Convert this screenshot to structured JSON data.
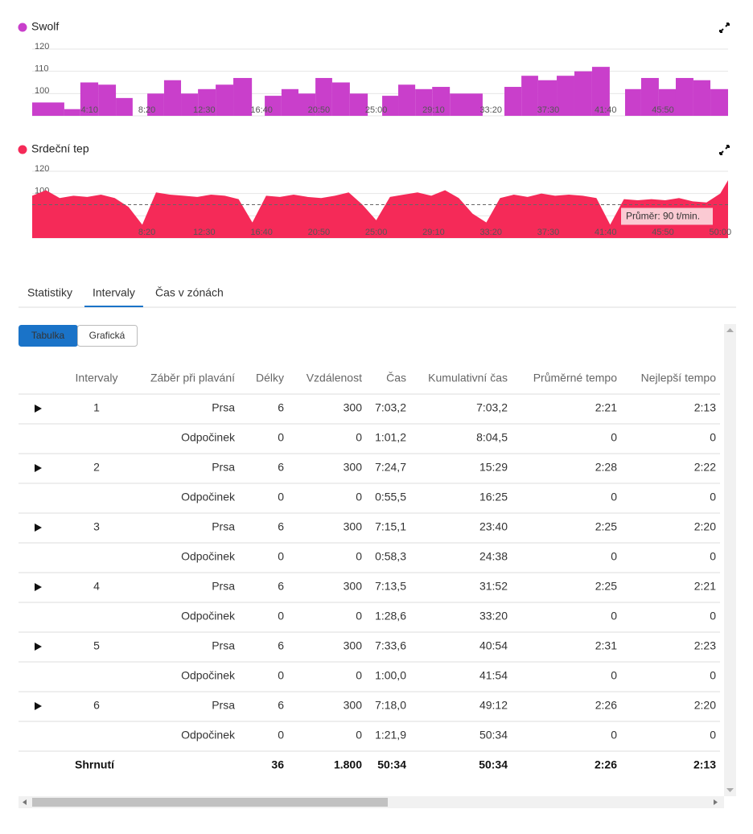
{
  "chart_data": [
    {
      "type": "histogram",
      "title": "Swolf",
      "color": "#c93fcb",
      "bins": [
        0,
        140,
        210,
        288,
        365,
        438,
        502,
        575,
        649,
        723,
        800,
        877,
        958,
        1014,
        1087,
        1161,
        1235,
        1308,
        1385,
        1463,
        1526,
        1596,
        1670,
        1744,
        1821,
        1964,
        2059,
        2133,
        2206,
        2287,
        2364,
        2441,
        2518,
        2585,
        2655,
        2732,
        2806,
        2883,
        2957,
        3034
      ],
      "values": [
        96,
        93,
        105,
        104,
        98,
        null,
        100,
        106,
        100,
        102,
        104,
        107,
        null,
        99,
        102,
        100,
        107,
        105,
        100,
        null,
        99,
        104,
        102,
        103,
        100,
        null,
        103,
        108,
        106,
        108,
        110,
        112,
        null,
        102,
        107,
        102,
        107,
        106,
        102
      ],
      "xlim": [
        0,
        3034
      ],
      "xticks": [
        {
          "value": 250,
          "label": "4:10"
        },
        {
          "value": 500,
          "label": "8:20"
        },
        {
          "value": 750,
          "label": "12:30"
        },
        {
          "value": 1000,
          "label": "16:40"
        },
        {
          "value": 1250,
          "label": "20:50"
        },
        {
          "value": 1500,
          "label": "25:00"
        },
        {
          "value": 1750,
          "label": "29:10"
        },
        {
          "value": 2000,
          "label": "33:20"
        },
        {
          "value": 2250,
          "label": "37:30"
        },
        {
          "value": 2500,
          "label": "41:40"
        },
        {
          "value": 2750,
          "label": "45:50"
        }
      ],
      "ylim": [
        90,
        120
      ],
      "yticks": [
        90,
        100,
        110,
        120
      ],
      "grid": true
    },
    {
      "type": "area",
      "title": "Srdeční tep",
      "color": "#f52a58",
      "x": [
        0,
        60,
        120,
        180,
        240,
        300,
        360,
        420,
        480,
        540,
        600,
        660,
        720,
        780,
        840,
        900,
        960,
        1020,
        1080,
        1140,
        1200,
        1260,
        1320,
        1380,
        1440,
        1500,
        1560,
        1620,
        1680,
        1740,
        1800,
        1860,
        1920,
        1980,
        2040,
        2100,
        2160,
        2220,
        2280,
        2340,
        2400,
        2460,
        2520,
        2580,
        2640,
        2700,
        2760,
        2820,
        2880,
        2940,
        3000,
        3034
      ],
      "values": [
        98,
        103,
        96,
        98,
        97,
        99,
        96,
        88,
        72,
        101,
        99,
        98,
        97,
        99,
        98,
        95,
        74,
        98,
        97,
        99,
        97,
        96,
        98,
        101,
        90,
        76,
        97,
        99,
        101,
        98,
        103,
        96,
        82,
        74,
        96,
        99,
        97,
        100,
        98,
        99,
        98,
        96,
        72,
        95,
        94,
        95,
        94,
        96,
        93,
        92,
        100,
        112
      ],
      "xlim": [
        0,
        3034
      ],
      "xticks": [
        {
          "value": 500,
          "label": "8:20"
        },
        {
          "value": 750,
          "label": "12:30"
        },
        {
          "value": 1000,
          "label": "16:40"
        },
        {
          "value": 1250,
          "label": "20:50"
        },
        {
          "value": 1500,
          "label": "25:00"
        },
        {
          "value": 1750,
          "label": "29:10"
        },
        {
          "value": 2000,
          "label": "33:20"
        },
        {
          "value": 2250,
          "label": "37:30"
        },
        {
          "value": 2500,
          "label": "41:40"
        },
        {
          "value": 2750,
          "label": "45:50"
        },
        {
          "value": 3000,
          "label": "50:00"
        }
      ],
      "ylim": [
        60,
        120
      ],
      "yticks": [
        60,
        80,
        100,
        120
      ],
      "grid": true,
      "average": {
        "value": 90,
        "label": "Průměr: 90 t/min."
      }
    }
  ],
  "tabs": [
    "Statistiky",
    "Intervaly",
    "Čas v zónách"
  ],
  "active_tab": 1,
  "buttons": [
    "Tabulka",
    "Grafická"
  ],
  "active_button": 0,
  "table": {
    "columns": [
      "Intervaly",
      "Záběr při plavání",
      "Délky",
      "Vzdálenost",
      "Čas",
      "Kumulativní čas",
      "Průměrné tempo",
      "Nejlepší tempo"
    ],
    "rows": [
      [
        "1",
        "Prsa",
        "6",
        "300",
        "7:03,2",
        "7:03,2",
        "2:21",
        "2:13"
      ],
      [
        null,
        "Odpočinek",
        "0",
        "0",
        "1:01,2",
        "8:04,5",
        "0",
        "0"
      ],
      [
        "2",
        "Prsa",
        "6",
        "300",
        "7:24,7",
        "15:29",
        "2:28",
        "2:22"
      ],
      [
        null,
        "Odpočinek",
        "0",
        "0",
        "0:55,5",
        "16:25",
        "0",
        "0"
      ],
      [
        "3",
        "Prsa",
        "6",
        "300",
        "7:15,1",
        "23:40",
        "2:25",
        "2:20"
      ],
      [
        null,
        "Odpočinek",
        "0",
        "0",
        "0:58,3",
        "24:38",
        "0",
        "0"
      ],
      [
        "4",
        "Prsa",
        "6",
        "300",
        "7:13,5",
        "31:52",
        "2:25",
        "2:21"
      ],
      [
        null,
        "Odpočinek",
        "0",
        "0",
        "1:28,6",
        "33:20",
        "0",
        "0"
      ],
      [
        "5",
        "Prsa",
        "6",
        "300",
        "7:33,6",
        "40:54",
        "2:31",
        "2:23"
      ],
      [
        null,
        "Odpočinek",
        "0",
        "0",
        "1:00,0",
        "41:54",
        "0",
        "0"
      ],
      [
        "6",
        "Prsa",
        "6",
        "300",
        "7:18,0",
        "49:12",
        "2:26",
        "2:20"
      ],
      [
        null,
        "Odpočinek",
        "0",
        "0",
        "1:21,9",
        "50:34",
        "0",
        "0"
      ]
    ],
    "summary": [
      "Shrnutí",
      null,
      "36",
      "1.800",
      "50:34",
      "50:34",
      "2:26",
      "2:13"
    ]
  }
}
